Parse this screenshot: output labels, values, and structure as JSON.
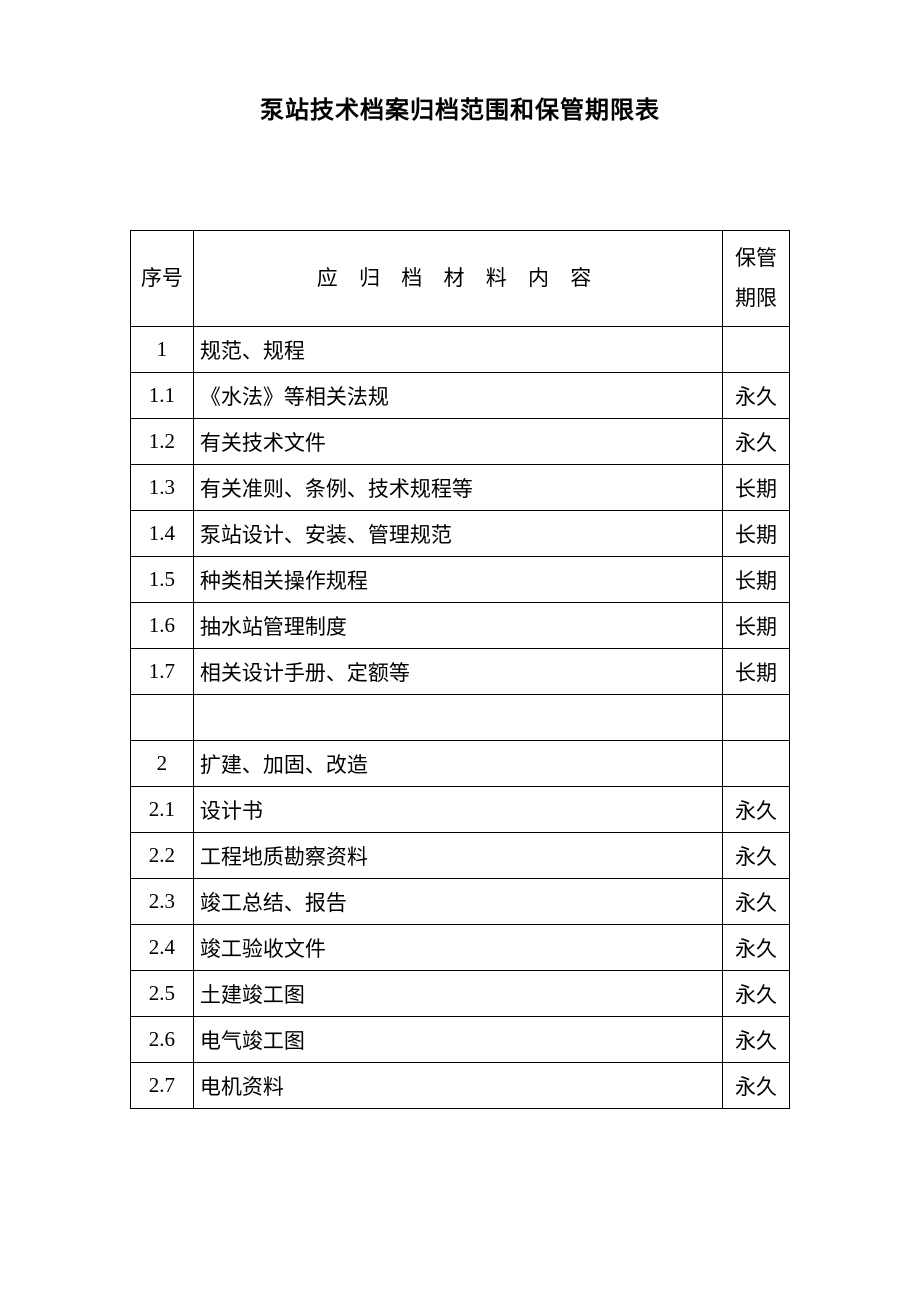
{
  "title": "泵站技术档案归档范围和保管期限表",
  "headers": {
    "seq": "序号",
    "content": "应 归 档 材 料 内 容",
    "period_line1": "保管",
    "period_line2": "期限"
  },
  "rows": [
    {
      "seq": "1",
      "content": "规范、规程",
      "period": ""
    },
    {
      "seq": "1.1",
      "content": "《水法》等相关法规",
      "period": "永久"
    },
    {
      "seq": "1.2",
      "content": "有关技术文件",
      "period": "永久"
    },
    {
      "seq": "1.3",
      "content": "有关准则、条例、技术规程等",
      "period": "长期"
    },
    {
      "seq": "1.4",
      "content": "泵站设计、安装、管理规范",
      "period": "长期"
    },
    {
      "seq": "1.5",
      "content": "种类相关操作规程",
      "period": "长期"
    },
    {
      "seq": "1.6",
      "content": "抽水站管理制度",
      "period": "长期"
    },
    {
      "seq": "1.7",
      "content": "相关设计手册、定额等",
      "period": "长期"
    },
    {
      "seq": "",
      "content": "",
      "period": ""
    },
    {
      "seq": "2",
      "content": "扩建、加固、改造",
      "period": ""
    },
    {
      "seq": "2.1",
      "content": "设计书",
      "period": "永久"
    },
    {
      "seq": "2.2",
      "content": "工程地质勘察资料",
      "period": "永久"
    },
    {
      "seq": "2.3",
      "content": "竣工总结、报告",
      "period": "永久"
    },
    {
      "seq": "2.4",
      "content": "竣工验收文件",
      "period": "永久"
    },
    {
      "seq": "2.5",
      "content": "土建竣工图",
      "period": "永久"
    },
    {
      "seq": "2.6",
      "content": "电气竣工图",
      "period": "永久"
    },
    {
      "seq": "2.7",
      "content": "电机资料",
      "period": "永久"
    }
  ],
  "styling": {
    "page_bg": "#ffffff",
    "border_color": "#000000",
    "text_color": "#000000",
    "title_fontsize": 24,
    "cell_fontsize": 21,
    "header_row_height": 96,
    "data_row_height": 46,
    "col_widths": {
      "seq": 62,
      "content": 522,
      "period": 66
    }
  }
}
